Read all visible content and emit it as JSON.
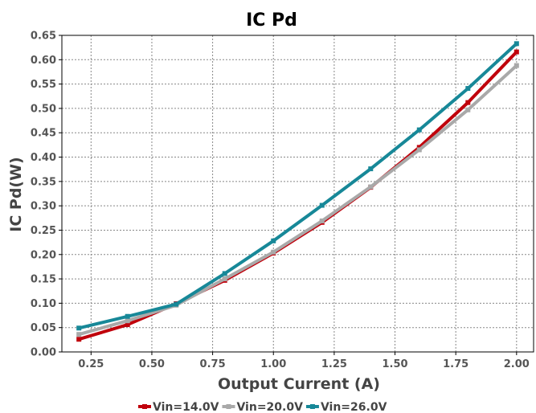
{
  "chart_data": {
    "type": "line",
    "title": "IC Pd",
    "xlabel": "Output Current (A)",
    "ylabel": "IC Pd(W)",
    "xlim": [
      0.13,
      2.07
    ],
    "ylim": [
      0.0,
      0.65
    ],
    "x_ticks": [
      "0.25",
      "0.50",
      "0.75",
      "1.00",
      "1.25",
      "1.50",
      "1.75",
      "2.00"
    ],
    "y_ticks": [
      "0.00",
      "0.05",
      "0.10",
      "0.15",
      "0.20",
      "0.25",
      "0.30",
      "0.35",
      "0.40",
      "0.45",
      "0.50",
      "0.55",
      "0.60",
      "0.65"
    ],
    "grid": true,
    "legend_position": "bottom",
    "x": [
      0.2,
      0.4,
      0.6,
      0.8,
      1.0,
      1.2,
      1.4,
      1.6,
      1.8,
      2.0
    ],
    "series": [
      {
        "name": "Vin=14.0V",
        "color": "#c0000b",
        "values": [
          0.026,
          0.056,
          0.099,
          0.147,
          0.203,
          0.266,
          0.338,
          0.42,
          0.512,
          0.616
        ]
      },
      {
        "name": "Vin=20.0V",
        "color": "#a9a9a9",
        "values": [
          0.036,
          0.064,
          0.096,
          0.15,
          0.205,
          0.269,
          0.339,
          0.415,
          0.497,
          0.588
        ]
      },
      {
        "name": "Vin=26.0V",
        "color": "#178898",
        "values": [
          0.049,
          0.073,
          0.098,
          0.161,
          0.228,
          0.301,
          0.376,
          0.456,
          0.541,
          0.633
        ]
      }
    ]
  }
}
